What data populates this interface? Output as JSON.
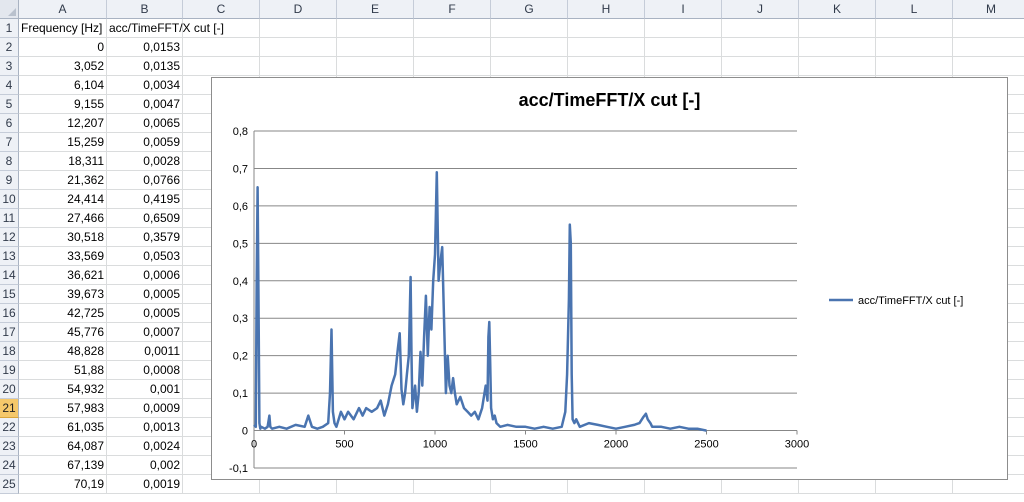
{
  "columns": [
    "A",
    "B",
    "C",
    "D",
    "E",
    "F",
    "G",
    "H",
    "I",
    "J",
    "K",
    "L",
    "M"
  ],
  "rows": [
    "1",
    "2",
    "3",
    "4",
    "5",
    "6",
    "7",
    "8",
    "9",
    "10",
    "11",
    "12",
    "13",
    "14",
    "15",
    "16",
    "17",
    "18",
    "19",
    "20",
    "21",
    "22",
    "23",
    "24",
    "25"
  ],
  "selected_row": "21",
  "headers": {
    "a1": "Frequency [Hz]",
    "b1": "acc/TimeFFT/X cut [-]"
  },
  "col_a": [
    "0",
    "3,052",
    "6,104",
    "9,155",
    "12,207",
    "15,259",
    "18,311",
    "21,362",
    "24,414",
    "27,466",
    "30,518",
    "33,569",
    "36,621",
    "39,673",
    "42,725",
    "45,776",
    "48,828",
    "51,88",
    "54,932",
    "57,983",
    "61,035",
    "64,087",
    "67,139",
    "70,19"
  ],
  "col_b": [
    "0,0153",
    "0,0135",
    "0,0034",
    "0,0047",
    "0,0065",
    "0,0059",
    "0,0028",
    "0,0766",
    "0,4195",
    "0,6509",
    "0,3579",
    "0,0503",
    "0,0006",
    "0,0005",
    "0,0005",
    "0,0007",
    "0,0011",
    "0,0008",
    "0,001",
    "0,0009",
    "0,0013",
    "0,0024",
    "0,002",
    "0,0019"
  ],
  "colors": {
    "series": "#4a74b0",
    "grid": "#878787",
    "header_bg": "#eef1f6",
    "selected_row": "#f5c86b"
  },
  "chart_data": {
    "type": "line",
    "title": "acc/TimeFFT/X cut [-]",
    "xlabel": "",
    "ylabel": "",
    "xlim": [
      0,
      3000
    ],
    "ylim": [
      -0.1,
      0.8
    ],
    "x_ticks": [
      "0",
      "500",
      "1000",
      "1500",
      "2000",
      "2500",
      "3000"
    ],
    "y_ticks": [
      "-0,1",
      "0",
      "0,1",
      "0,2",
      "0,3",
      "0,4",
      "0,5",
      "0,6",
      "0,7",
      "0,8"
    ],
    "grid": "horizontal",
    "legend_position": "right",
    "series": [
      {
        "name": "acc/TimeFFT/X cut [-]",
        "x": [
          0,
          10,
          15,
          20,
          25,
          30,
          35,
          40,
          60,
          75,
          85,
          90,
          100,
          140,
          180,
          230,
          280,
          300,
          320,
          350,
          380,
          410,
          420,
          428,
          436,
          445,
          455,
          480,
          500,
          520,
          550,
          580,
          600,
          620,
          650,
          680,
          700,
          720,
          740,
          760,
          780,
          795,
          805,
          815,
          825,
          835,
          845,
          855,
          865,
          870,
          875,
          880,
          890,
          900,
          910,
          920,
          930,
          940,
          950,
          960,
          970,
          980,
          990,
          1000,
          1010,
          1020,
          1030,
          1040,
          1050,
          1060,
          1070,
          1080,
          1090,
          1100,
          1110,
          1120,
          1140,
          1160,
          1180,
          1200,
          1220,
          1240,
          1260,
          1280,
          1290,
          1295,
          1300,
          1305,
          1310,
          1320,
          1330,
          1340,
          1360,
          1400,
          1450,
          1500,
          1550,
          1600,
          1650,
          1700,
          1720,
          1730,
          1740,
          1745,
          1750,
          1755,
          1760,
          1770,
          1780,
          1800,
          1850,
          1900,
          1950,
          2000,
          2050,
          2100,
          2130,
          2150,
          2165,
          2175,
          2190,
          2200,
          2250,
          2300,
          2350,
          2400,
          2450,
          2500
        ],
        "values": [
          0.015,
          0.01,
          0.4,
          0.65,
          0.35,
          0.02,
          0.005,
          0.01,
          0.005,
          0.01,
          0.04,
          0.01,
          0.005,
          0.01,
          0.005,
          0.015,
          0.01,
          0.04,
          0.01,
          0.005,
          0.01,
          0.02,
          0.1,
          0.27,
          0.05,
          0.02,
          0.01,
          0.05,
          0.03,
          0.05,
          0.03,
          0.06,
          0.04,
          0.06,
          0.05,
          0.06,
          0.08,
          0.04,
          0.07,
          0.12,
          0.15,
          0.22,
          0.26,
          0.11,
          0.07,
          0.1,
          0.15,
          0.2,
          0.41,
          0.2,
          0.06,
          0.08,
          0.12,
          0.05,
          0.1,
          0.21,
          0.12,
          0.25,
          0.36,
          0.2,
          0.33,
          0.27,
          0.4,
          0.47,
          0.69,
          0.4,
          0.45,
          0.49,
          0.3,
          0.1,
          0.2,
          0.12,
          0.1,
          0.14,
          0.1,
          0.07,
          0.09,
          0.06,
          0.05,
          0.04,
          0.05,
          0.03,
          0.06,
          0.12,
          0.08,
          0.25,
          0.29,
          0.18,
          0.06,
          0.03,
          0.04,
          0.02,
          0.01,
          0.015,
          0.01,
          0.01,
          0.005,
          0.01,
          0.005,
          0.01,
          0.05,
          0.15,
          0.35,
          0.55,
          0.5,
          0.15,
          0.03,
          0.02,
          0.03,
          0.01,
          0.02,
          0.015,
          0.01,
          0.005,
          0.01,
          0.015,
          0.02,
          0.035,
          0.045,
          0.03,
          0.02,
          0.01,
          0.01,
          0.005,
          0.01,
          0.005,
          0.005,
          0.0
        ]
      }
    ]
  }
}
